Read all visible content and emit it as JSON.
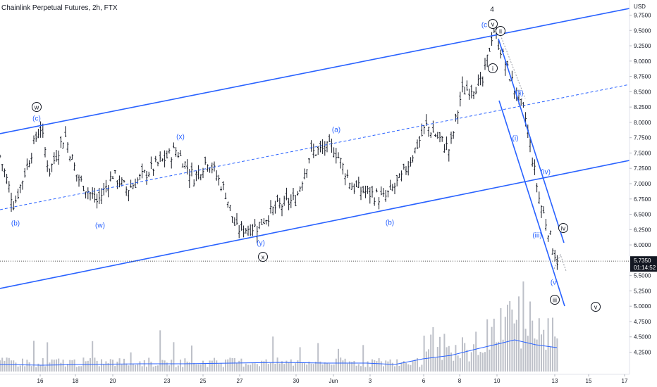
{
  "header": {
    "title": "Chainlink Perpetual Futures, 2h, FTX"
  },
  "colors": {
    "channel": "#2962ff",
    "bars": "#131722",
    "volume": "#b2b5be",
    "volume_ma": "#2962ff",
    "wave_label": "#2962ff",
    "price_tag_bg": "#131722",
    "price_tag_fg": "#ffffff",
    "axis_text": "#131722"
  },
  "price_axis": {
    "currency": "USD",
    "ticks": [
      "9.7500",
      "9.5000",
      "9.2500",
      "9.0000",
      "8.7500",
      "8.5000",
      "8.2500",
      "8.0000",
      "7.7500",
      "7.5000",
      "7.2500",
      "7.0000",
      "6.7500",
      "6.5000",
      "6.2500",
      "6.0000",
      "5.5000",
      "5.2500",
      "5.0000",
      "4.7500",
      "4.5000",
      "4.2500"
    ],
    "current_price": "5.7350",
    "countdown": "01:14:52"
  },
  "time_axis": {
    "ticks": [
      "16",
      "18",
      "20",
      "23",
      "25",
      "27",
      "30",
      "Jun",
      "3",
      "6",
      "8",
      "10",
      "13",
      "15",
      "17"
    ]
  },
  "wave_labels": {
    "w_circled": "w",
    "c1": "(c)",
    "b1": "(b)",
    "w_paren": "(w)",
    "x_paren": "(x)",
    "y_paren": "(y)",
    "x_circled": "x",
    "a_paren": "(a)",
    "b2": "(b)",
    "c2": "(c",
    "v_top": "v",
    "four": "4",
    "ii_circled": "ii",
    "i_circled": "i",
    "ii_paren": "(ii)",
    "i_paren": "(i)",
    "iv_paren": "(iv)",
    "iii_paren": "(iii)",
    "iv_circled": "iv",
    "v_paren": "(v",
    "iii_circled": "iii",
    "v_circled": "v"
  },
  "chart_data": {
    "type": "ohlc",
    "symbol": "Chainlink Perpetual Futures",
    "interval": "2h",
    "exchange": "FTX",
    "y_range": [
      4.1,
      9.95
    ],
    "x_labels": [
      "16",
      "18",
      "20",
      "23",
      "25",
      "27",
      "30",
      "Jun",
      "3",
      "6",
      "8",
      "10",
      "13",
      "15",
      "17"
    ],
    "close_path": [
      {
        "x": "14",
        "y": 7.45
      },
      {
        "x": "15",
        "y": 6.65
      },
      {
        "x": "16",
        "y": 7.95
      },
      {
        "x": "16",
        "y": 7.2
      },
      {
        "x": "17",
        "y": 7.8
      },
      {
        "x": "18",
        "y": 7.1
      },
      {
        "x": "19",
        "y": 6.7
      },
      {
        "x": "20",
        "y": 7.15
      },
      {
        "x": "21",
        "y": 6.9
      },
      {
        "x": "22",
        "y": 7.15
      },
      {
        "x": "23",
        "y": 7.55
      },
      {
        "x": "24",
        "y": 7.1
      },
      {
        "x": "25",
        "y": 7.4
      },
      {
        "x": "26",
        "y": 6.85
      },
      {
        "x": "27",
        "y": 6.25
      },
      {
        "x": "28",
        "y": 6.3
      },
      {
        "x": "29",
        "y": 6.6
      },
      {
        "x": "30",
        "y": 6.75
      },
      {
        "x": "31",
        "y": 7.5
      },
      {
        "x": "Jun",
        "y": 7.6
      },
      {
        "x": "2",
        "y": 6.95
      },
      {
        "x": "3",
        "y": 6.75
      },
      {
        "x": "4",
        "y": 7.1
      },
      {
        "x": "5",
        "y": 7.95
      },
      {
        "x": "6",
        "y": 7.55
      },
      {
        "x": "7",
        "y": 8.5
      },
      {
        "x": "8",
        "y": 8.65
      },
      {
        "x": "9",
        "y": 9.55
      },
      {
        "x": "10",
        "y": 8.85
      },
      {
        "x": "11",
        "y": 8.1
      },
      {
        "x": "12",
        "y": 6.75
      },
      {
        "x": "13",
        "y": 5.75
      }
    ],
    "last_price": 5.735,
    "annotations": [
      "w",
      "(c)",
      "(b)",
      "(w)",
      "(x)",
      "(y)",
      "x",
      "(a)",
      "(b)",
      "(c",
      "v",
      "4",
      "ii",
      "i",
      "(ii)",
      "(i)",
      "(iv)",
      "(iii)",
      "iv",
      "(v",
      "iii",
      "v"
    ]
  }
}
